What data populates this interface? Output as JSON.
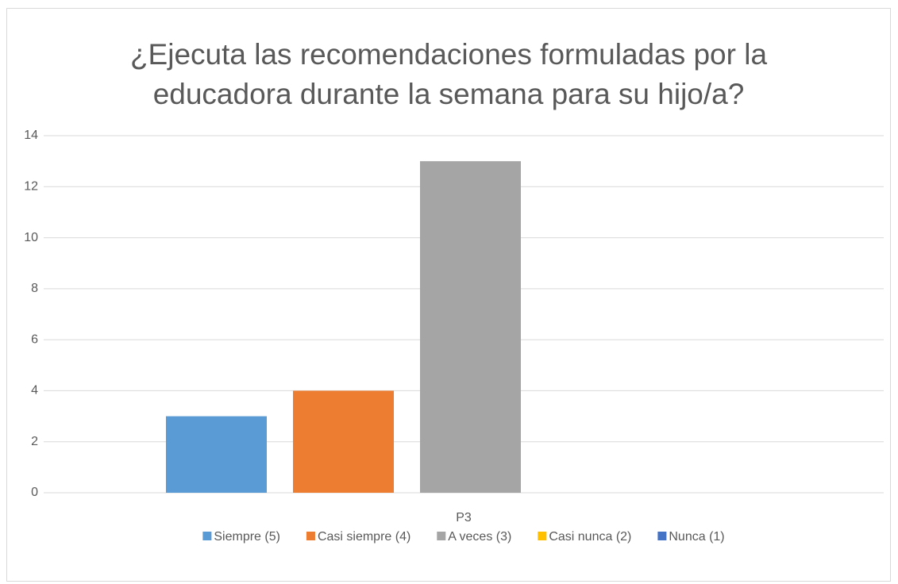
{
  "chart_data": {
    "type": "bar",
    "title": "¿Ejecuta las recomendaciones formuladas por la educadora durante la semana para su hijo/a?",
    "categories": [
      "P3"
    ],
    "series": [
      {
        "name": "Siempre (5)",
        "color": "#5b9bd5",
        "values": [
          3
        ]
      },
      {
        "name": "Casi siempre (4)",
        "color": "#ed7d31",
        "values": [
          4
        ]
      },
      {
        "name": "A veces (3)",
        "color": "#a5a5a5",
        "values": [
          13
        ]
      },
      {
        "name": "Casi nunca (2)",
        "color": "#ffc000",
        "values": [
          0
        ]
      },
      {
        "name": "Nunca (1)",
        "color": "#4472c4",
        "values": [
          0
        ]
      }
    ],
    "ylim": [
      0,
      14
    ],
    "yticks": [
      0,
      2,
      4,
      6,
      8,
      10,
      12,
      14
    ],
    "grid": true,
    "legend": "bottom"
  }
}
